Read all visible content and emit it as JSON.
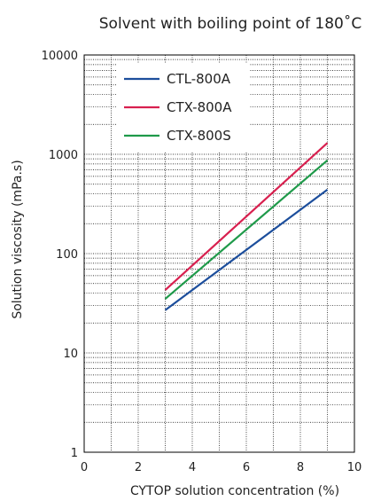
{
  "chart_data": {
    "type": "line",
    "title": "Solvent with boiling point of 180˚C",
    "xlabel": "CYTOP solution concentration (%)",
    "ylabel": "Solution viscosity (mPa.s)",
    "x_scale": "linear",
    "y_scale": "log",
    "xlim": [
      0,
      10
    ],
    "ylim": [
      1,
      10000
    ],
    "x_ticks": [
      0,
      2,
      4,
      6,
      8,
      10
    ],
    "y_ticks": [
      1,
      10,
      100,
      1000,
      10000
    ],
    "y_tick_labels": [
      "1",
      "10",
      "100",
      "1000",
      "10000"
    ],
    "grid": "dotted",
    "legend_position": "top-left",
    "series": [
      {
        "name": "CTL-800A",
        "color": "#1c4e9c",
        "x": [
          3,
          9
        ],
        "y": [
          27,
          440
        ]
      },
      {
        "name": "CTX-800A",
        "color": "#d8204f",
        "x": [
          3,
          9
        ],
        "y": [
          43,
          1300
        ]
      },
      {
        "name": "CTX-800S",
        "color": "#1f9a4a",
        "x": [
          3,
          9
        ],
        "y": [
          35,
          870
        ]
      }
    ]
  }
}
